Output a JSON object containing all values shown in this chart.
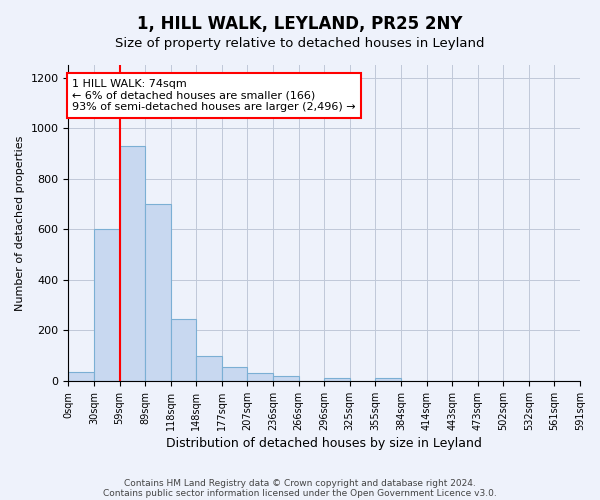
{
  "title": "1, HILL WALK, LEYLAND, PR25 2NY",
  "subtitle": "Size of property relative to detached houses in Leyland",
  "xlabel": "Distribution of detached houses by size in Leyland",
  "ylabel": "Number of detached properties",
  "bar_values": [
    35,
    600,
    930,
    700,
    245,
    100,
    55,
    30,
    20,
    0,
    10,
    0,
    10,
    0,
    0,
    0,
    0,
    0,
    0,
    0
  ],
  "bar_color": "#c8d8f0",
  "bar_edge_color": "#7bafd4",
  "x_labels": [
    "0sqm",
    "30sqm",
    "59sqm",
    "89sqm",
    "118sqm",
    "148sqm",
    "177sqm",
    "207sqm",
    "236sqm",
    "266sqm",
    "296sqm",
    "325sqm",
    "355sqm",
    "384sqm",
    "414sqm",
    "443sqm",
    "473sqm",
    "502sqm",
    "532sqm",
    "561sqm",
    "591sqm"
  ],
  "ylim": [
    0,
    1250
  ],
  "yticks": [
    0,
    200,
    400,
    600,
    800,
    1000,
    1200
  ],
  "annotation_text": "1 HILL WALK: 74sqm\n← 6% of detached houses are smaller (166)\n93% of semi-detached houses are larger (2,496) →",
  "annotation_box_color": "white",
  "annotation_box_edge_color": "red",
  "property_line_color": "red",
  "footnote1": "Contains HM Land Registry data © Crown copyright and database right 2024.",
  "footnote2": "Contains public sector information licensed under the Open Government Licence v3.0.",
  "background_color": "#eef2fb",
  "plot_bg_color": "#eef2fb",
  "grid_color": "#c0c8d8"
}
